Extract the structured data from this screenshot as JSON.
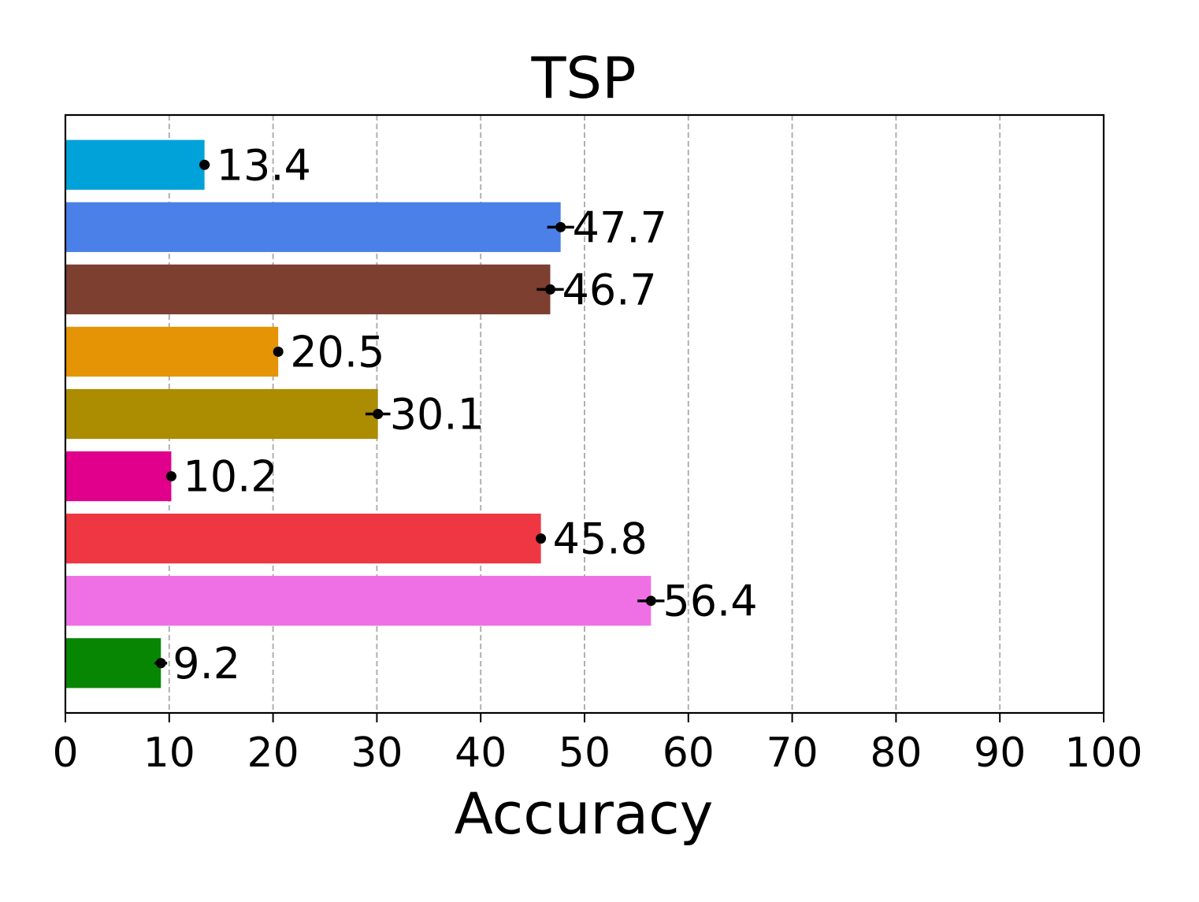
{
  "chart_data": {
    "type": "bar",
    "orientation": "horizontal",
    "title": "TSP",
    "xlabel": "Accuracy",
    "ylabel": "",
    "xlim": [
      0,
      100
    ],
    "xticks": [
      0,
      10,
      20,
      30,
      40,
      50,
      60,
      70,
      80,
      90,
      100
    ],
    "xtick_labels": [
      "0",
      "10",
      "20",
      "30",
      "40",
      "50",
      "60",
      "70",
      "80",
      "90",
      "100"
    ],
    "grid": "vertical dashed",
    "legend": "none",
    "bars": [
      {
        "value": 13.4,
        "label": "13.4",
        "error": 0.5,
        "color": "#00A2D9"
      },
      {
        "value": 47.7,
        "label": "47.7",
        "error": 1.3,
        "color": "#4A80E8"
      },
      {
        "value": 46.7,
        "label": "46.7",
        "error": 1.3,
        "color": "#7D3F30"
      },
      {
        "value": 20.5,
        "label": "20.5",
        "error": 0.3,
        "color": "#E49404"
      },
      {
        "value": 30.1,
        "label": "30.1",
        "error": 1.2,
        "color": "#AC8C00"
      },
      {
        "value": 10.2,
        "label": "10.2",
        "error": 0.3,
        "color": "#E0008C"
      },
      {
        "value": 45.8,
        "label": "45.8",
        "error": 0.3,
        "color": "#EF3743"
      },
      {
        "value": 56.4,
        "label": "56.4",
        "error": 1.3,
        "color": "#EF70E4"
      },
      {
        "value": 9.2,
        "label": "9.2",
        "error": 0.6,
        "color": "#078604"
      }
    ]
  }
}
